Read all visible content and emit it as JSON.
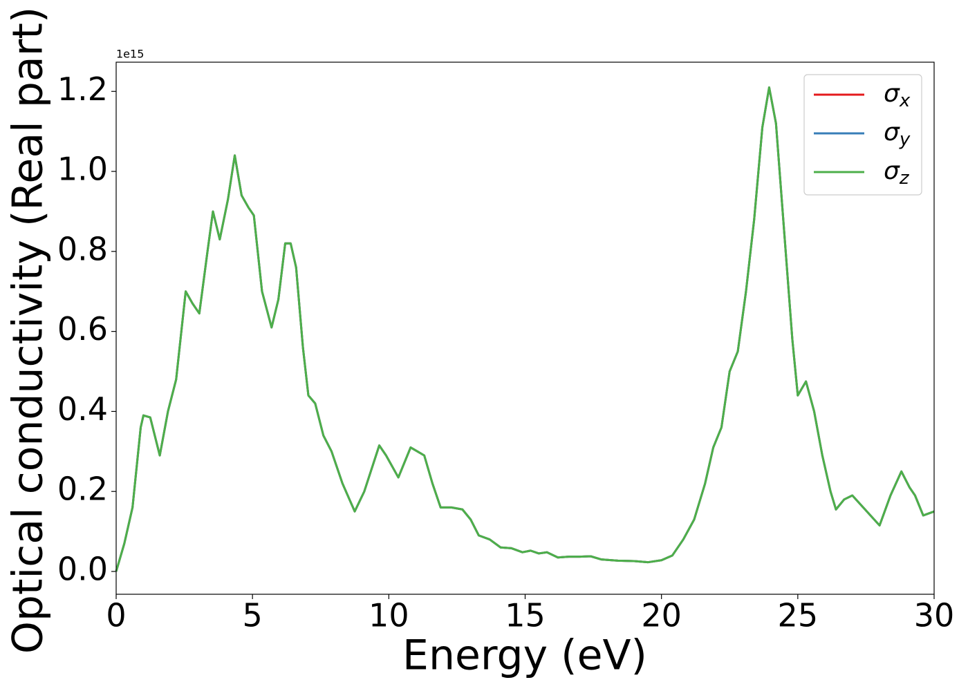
{
  "chart_data": {
    "type": "line",
    "xlabel": "Energy (eV)",
    "ylabel": "Optical conductivity (Real part)",
    "y_offset_label": "1e15",
    "x": [
      0,
      0.3,
      0.6,
      0.9,
      1.0,
      1.25,
      1.6,
      1.9,
      2.2,
      2.55,
      2.8,
      3.05,
      3.35,
      3.55,
      3.8,
      4.1,
      4.35,
      4.6,
      4.85,
      5.05,
      5.35,
      5.7,
      5.95,
      6.2,
      6.4,
      6.6,
      6.85,
      7.05,
      7.3,
      7.6,
      7.9,
      8.3,
      8.75,
      9.1,
      9.65,
      9.9,
      10.35,
      10.8,
      11.05,
      11.3,
      11.6,
      11.9,
      12.3,
      12.7,
      13.0,
      13.3,
      13.7,
      14.1,
      14.5,
      14.9,
      15.2,
      15.5,
      15.8,
      16.2,
      16.6,
      17.0,
      17.4,
      17.8,
      18.4,
      19.0,
      19.5,
      20.0,
      20.4,
      20.8,
      21.2,
      21.6,
      21.9,
      22.2,
      22.5,
      22.8,
      23.1,
      23.4,
      23.7,
      23.95,
      24.2,
      24.5,
      24.8,
      25.0,
      25.3,
      25.6,
      25.9,
      26.2,
      26.4,
      26.7,
      27.0,
      27.4,
      27.8,
      28.0,
      28.4,
      28.8,
      29.1,
      29.3,
      29.6,
      30.0
    ],
    "series": [
      {
        "name": "σx",
        "color": "#e41a1c",
        "values": [
          0.0,
          0.07,
          0.16,
          0.36,
          0.39,
          0.385,
          0.29,
          0.4,
          0.48,
          0.7,
          0.67,
          0.645,
          0.8,
          0.9,
          0.83,
          0.93,
          1.04,
          0.94,
          0.91,
          0.89,
          0.7,
          0.61,
          0.68,
          0.82,
          0.82,
          0.76,
          0.56,
          0.44,
          0.42,
          0.34,
          0.3,
          0.22,
          0.15,
          0.2,
          0.315,
          0.29,
          0.235,
          0.31,
          0.3,
          0.29,
          0.22,
          0.16,
          0.16,
          0.155,
          0.13,
          0.09,
          0.08,
          0.06,
          0.058,
          0.048,
          0.052,
          0.045,
          0.048,
          0.035,
          0.037,
          0.037,
          0.038,
          0.03,
          0.027,
          0.026,
          0.023,
          0.028,
          0.04,
          0.08,
          0.13,
          0.22,
          0.31,
          0.36,
          0.5,
          0.55,
          0.7,
          0.88,
          1.11,
          1.21,
          1.12,
          0.85,
          0.58,
          0.44,
          0.475,
          0.4,
          0.29,
          0.2,
          0.155,
          0.18,
          0.19,
          0.16,
          0.13,
          0.115,
          0.19,
          0.25,
          0.21,
          0.19,
          0.14,
          0.15
        ]
      },
      {
        "name": "σy",
        "color": "#377eb8",
        "values": [
          0.0,
          0.07,
          0.16,
          0.36,
          0.39,
          0.385,
          0.29,
          0.4,
          0.48,
          0.7,
          0.67,
          0.645,
          0.8,
          0.9,
          0.83,
          0.93,
          1.04,
          0.94,
          0.91,
          0.89,
          0.7,
          0.61,
          0.68,
          0.82,
          0.82,
          0.76,
          0.56,
          0.44,
          0.42,
          0.34,
          0.3,
          0.22,
          0.15,
          0.2,
          0.315,
          0.29,
          0.235,
          0.31,
          0.3,
          0.29,
          0.22,
          0.16,
          0.16,
          0.155,
          0.13,
          0.09,
          0.08,
          0.06,
          0.058,
          0.048,
          0.052,
          0.045,
          0.048,
          0.035,
          0.037,
          0.037,
          0.038,
          0.03,
          0.027,
          0.026,
          0.023,
          0.028,
          0.04,
          0.08,
          0.13,
          0.22,
          0.31,
          0.36,
          0.5,
          0.55,
          0.7,
          0.88,
          1.11,
          1.21,
          1.12,
          0.85,
          0.58,
          0.44,
          0.475,
          0.4,
          0.29,
          0.2,
          0.155,
          0.18,
          0.19,
          0.16,
          0.13,
          0.115,
          0.19,
          0.25,
          0.21,
          0.19,
          0.14,
          0.15
        ]
      },
      {
        "name": "σz",
        "color": "#4daf4a",
        "values": [
          0.0,
          0.07,
          0.16,
          0.36,
          0.39,
          0.385,
          0.29,
          0.4,
          0.48,
          0.7,
          0.67,
          0.645,
          0.8,
          0.9,
          0.83,
          0.93,
          1.04,
          0.94,
          0.91,
          0.89,
          0.7,
          0.61,
          0.68,
          0.82,
          0.82,
          0.76,
          0.56,
          0.44,
          0.42,
          0.34,
          0.3,
          0.22,
          0.15,
          0.2,
          0.315,
          0.29,
          0.235,
          0.31,
          0.3,
          0.29,
          0.22,
          0.16,
          0.16,
          0.155,
          0.13,
          0.09,
          0.08,
          0.06,
          0.058,
          0.048,
          0.052,
          0.045,
          0.048,
          0.035,
          0.037,
          0.037,
          0.038,
          0.03,
          0.027,
          0.026,
          0.023,
          0.028,
          0.04,
          0.08,
          0.13,
          0.22,
          0.31,
          0.36,
          0.5,
          0.55,
          0.7,
          0.88,
          1.11,
          1.21,
          1.12,
          0.85,
          0.58,
          0.44,
          0.475,
          0.4,
          0.29,
          0.2,
          0.155,
          0.18,
          0.19,
          0.16,
          0.13,
          0.115,
          0.19,
          0.25,
          0.21,
          0.19,
          0.14,
          0.15
        ]
      }
    ],
    "xlim": [
      0,
      30
    ],
    "xticks": [
      0,
      5,
      10,
      15,
      20,
      25,
      30
    ],
    "ylim": [
      -0.057,
      1.273
    ],
    "yticks": [
      {
        "value": 0,
        "label": "0.0"
      },
      0.2,
      0.4,
      0.6,
      0.8,
      {
        "value": 1,
        "label": "1.0"
      },
      1.2
    ],
    "grid": false,
    "legend": "upper right"
  }
}
